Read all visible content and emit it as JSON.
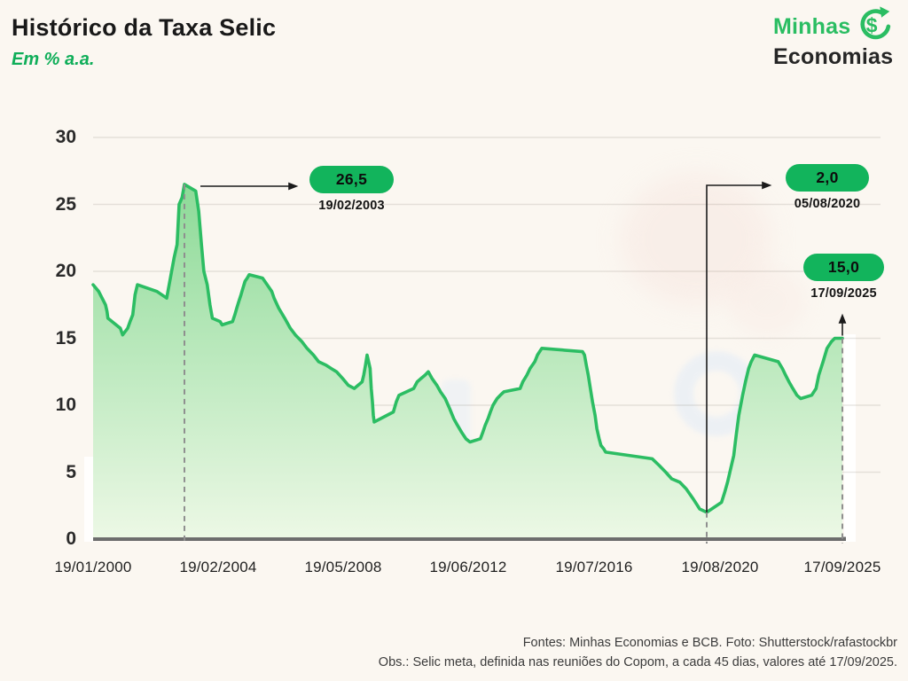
{
  "header": {
    "title": "Histórico da Taxa Selic",
    "subtitle": "Em % a.a."
  },
  "logo": {
    "line1": "Minhas",
    "line2": "Economias",
    "icon": "dollar-refresh-circle-icon"
  },
  "colors": {
    "background": "#fbf7f1",
    "line_green": "#2cbd63",
    "fill_top": "#8cda97",
    "fill_bottom": "#ecf8e5",
    "pill_green": "#12b45c",
    "brand_green": "#2abd62",
    "axis_gray": "#6d6d6d",
    "dash_gray": "#8f8f8f",
    "text_dark": "#191919"
  },
  "chart_data": {
    "type": "area",
    "title": "Histórico da Taxa Selic",
    "unit": "% a.a.",
    "grid": "horizontal",
    "ylim": [
      0,
      30
    ],
    "y_ticks": [
      0,
      5,
      10,
      15,
      20,
      25,
      30
    ],
    "x_tick_labels": [
      "19/01/2000",
      "19/02/2004",
      "19/05/2008",
      "19/06/2012",
      "19/07/2016",
      "19/08/2020",
      "17/09/2025"
    ],
    "series": [
      {
        "name": "Selic meta (% a.a.)",
        "points": [
          [
            2000.05,
            19.0
          ],
          [
            2000.24,
            18.5
          ],
          [
            2000.47,
            17.5
          ],
          [
            2000.52,
            17.0
          ],
          [
            2000.55,
            16.5
          ],
          [
            2000.97,
            15.75
          ],
          [
            2001.05,
            15.25
          ],
          [
            2001.22,
            15.75
          ],
          [
            2001.3,
            16.25
          ],
          [
            2001.39,
            16.75
          ],
          [
            2001.47,
            18.25
          ],
          [
            2001.55,
            19.0
          ],
          [
            2002.21,
            18.5
          ],
          [
            2002.54,
            18.0
          ],
          [
            2002.79,
            21.0
          ],
          [
            2002.89,
            22.0
          ],
          [
            2002.96,
            25.0
          ],
          [
            2003.06,
            25.5
          ],
          [
            2003.14,
            26.5
          ],
          [
            2003.47,
            26.0
          ],
          [
            2003.56,
            24.5
          ],
          [
            2003.64,
            22.0
          ],
          [
            2003.71,
            20.0
          ],
          [
            2003.81,
            19.0
          ],
          [
            2003.89,
            17.5
          ],
          [
            2003.96,
            16.5
          ],
          [
            2004.21,
            16.25
          ],
          [
            2004.29,
            16.0
          ],
          [
            2004.71,
            16.25
          ],
          [
            2004.8,
            16.75
          ],
          [
            2004.88,
            17.25
          ],
          [
            2004.96,
            17.75
          ],
          [
            2005.05,
            18.25
          ],
          [
            2005.13,
            18.75
          ],
          [
            2005.21,
            19.25
          ],
          [
            2005.3,
            19.5
          ],
          [
            2005.38,
            19.75
          ],
          [
            2005.7,
            19.5
          ],
          [
            2005.8,
            19.0
          ],
          [
            2005.9,
            18.5
          ],
          [
            2005.95,
            18.0
          ],
          [
            2006.05,
            17.25
          ],
          [
            2006.18,
            16.5
          ],
          [
            2006.3,
            15.75
          ],
          [
            2006.41,
            15.25
          ],
          [
            2006.55,
            14.75
          ],
          [
            2006.66,
            14.25
          ],
          [
            2006.8,
            13.75
          ],
          [
            2006.91,
            13.25
          ],
          [
            2007.07,
            13.0
          ],
          [
            2007.18,
            12.75
          ],
          [
            2007.3,
            12.5
          ],
          [
            2007.43,
            12.0
          ],
          [
            2007.55,
            11.5
          ],
          [
            2007.68,
            11.25
          ],
          [
            2008.29,
            11.75
          ],
          [
            2008.42,
            12.25
          ],
          [
            2008.56,
            13.0
          ],
          [
            2008.69,
            13.75
          ],
          [
            2009.06,
            12.75
          ],
          [
            2009.19,
            11.25
          ],
          [
            2009.33,
            10.25
          ],
          [
            2009.44,
            9.25
          ],
          [
            2009.55,
            8.75
          ],
          [
            2010.32,
            9.5
          ],
          [
            2010.44,
            10.25
          ],
          [
            2010.55,
            10.75
          ],
          [
            2011.05,
            11.25
          ],
          [
            2011.17,
            11.75
          ],
          [
            2011.3,
            12.0
          ],
          [
            2011.44,
            12.25
          ],
          [
            2011.55,
            12.5
          ],
          [
            2011.66,
            12.0
          ],
          [
            2011.8,
            11.5
          ],
          [
            2011.91,
            11.0
          ],
          [
            2012.05,
            10.5
          ],
          [
            2012.18,
            9.75
          ],
          [
            2012.3,
            9.0
          ],
          [
            2012.41,
            8.5
          ],
          [
            2012.53,
            8.0
          ],
          [
            2012.66,
            7.5
          ],
          [
            2012.78,
            7.25
          ],
          [
            2013.29,
            7.5
          ],
          [
            2013.41,
            8.0
          ],
          [
            2013.52,
            8.5
          ],
          [
            2013.66,
            9.0
          ],
          [
            2013.77,
            9.5
          ],
          [
            2013.9,
            10.0
          ],
          [
            2014.04,
            10.5
          ],
          [
            2014.15,
            10.75
          ],
          [
            2014.27,
            11.0
          ],
          [
            2014.83,
            11.25
          ],
          [
            2014.92,
            11.75
          ],
          [
            2015.06,
            12.25
          ],
          [
            2015.17,
            12.75
          ],
          [
            2015.33,
            13.25
          ],
          [
            2015.42,
            13.75
          ],
          [
            2015.57,
            14.25
          ],
          [
            2016.8,
            14.0
          ],
          [
            2016.92,
            13.75
          ],
          [
            2017.03,
            13.0
          ],
          [
            2017.15,
            12.25
          ],
          [
            2017.28,
            11.25
          ],
          [
            2017.41,
            10.25
          ],
          [
            2017.57,
            9.25
          ],
          [
            2017.68,
            8.25
          ],
          [
            2017.82,
            7.5
          ],
          [
            2017.93,
            7.0
          ],
          [
            2018.1,
            6.75
          ],
          [
            2018.22,
            6.5
          ],
          [
            2019.58,
            6.0
          ],
          [
            2019.71,
            5.5
          ],
          [
            2019.83,
            5.0
          ],
          [
            2019.94,
            4.5
          ],
          [
            2020.09,
            4.25
          ],
          [
            2020.21,
            3.75
          ],
          [
            2020.34,
            3.0
          ],
          [
            2020.46,
            2.25
          ],
          [
            2020.59,
            2.0
          ],
          [
            2021.21,
            2.75
          ],
          [
            2021.34,
            3.5
          ],
          [
            2021.46,
            4.25
          ],
          [
            2021.59,
            5.25
          ],
          [
            2021.72,
            6.25
          ],
          [
            2021.82,
            7.75
          ],
          [
            2021.93,
            9.25
          ],
          [
            2022.09,
            10.75
          ],
          [
            2022.21,
            11.75
          ],
          [
            2022.34,
            12.75
          ],
          [
            2022.45,
            13.25
          ],
          [
            2022.59,
            13.75
          ],
          [
            2023.58,
            13.25
          ],
          [
            2023.72,
            12.75
          ],
          [
            2023.83,
            12.25
          ],
          [
            2023.95,
            11.75
          ],
          [
            2024.08,
            11.25
          ],
          [
            2024.22,
            10.75
          ],
          [
            2024.35,
            10.5
          ],
          [
            2024.71,
            10.75
          ],
          [
            2024.85,
            11.25
          ],
          [
            2024.94,
            12.25
          ],
          [
            2025.08,
            13.25
          ],
          [
            2025.21,
            14.25
          ],
          [
            2025.35,
            14.75
          ],
          [
            2025.46,
            15.0
          ],
          [
            2025.71,
            15.0
          ]
        ]
      }
    ],
    "annotations": [
      {
        "value_label": "26,5",
        "date": "19/02/2003",
        "x": 2003.14,
        "value": 26.5
      },
      {
        "value_label": "2,0",
        "date": "05/08/2020",
        "x": 2020.59,
        "value": 2.0
      },
      {
        "value_label": "15,0",
        "date": "17/09/2025",
        "x": 2025.71,
        "value": 15.0
      }
    ]
  },
  "footer": {
    "line1": "Fontes: Minhas Economias e BCB. Foto: Shutterstock/rafastockbr",
    "line2": "Obs.: Selic meta, definida nas reuniões do Copom, a cada 45 dias, valores até 17/09/2025."
  }
}
